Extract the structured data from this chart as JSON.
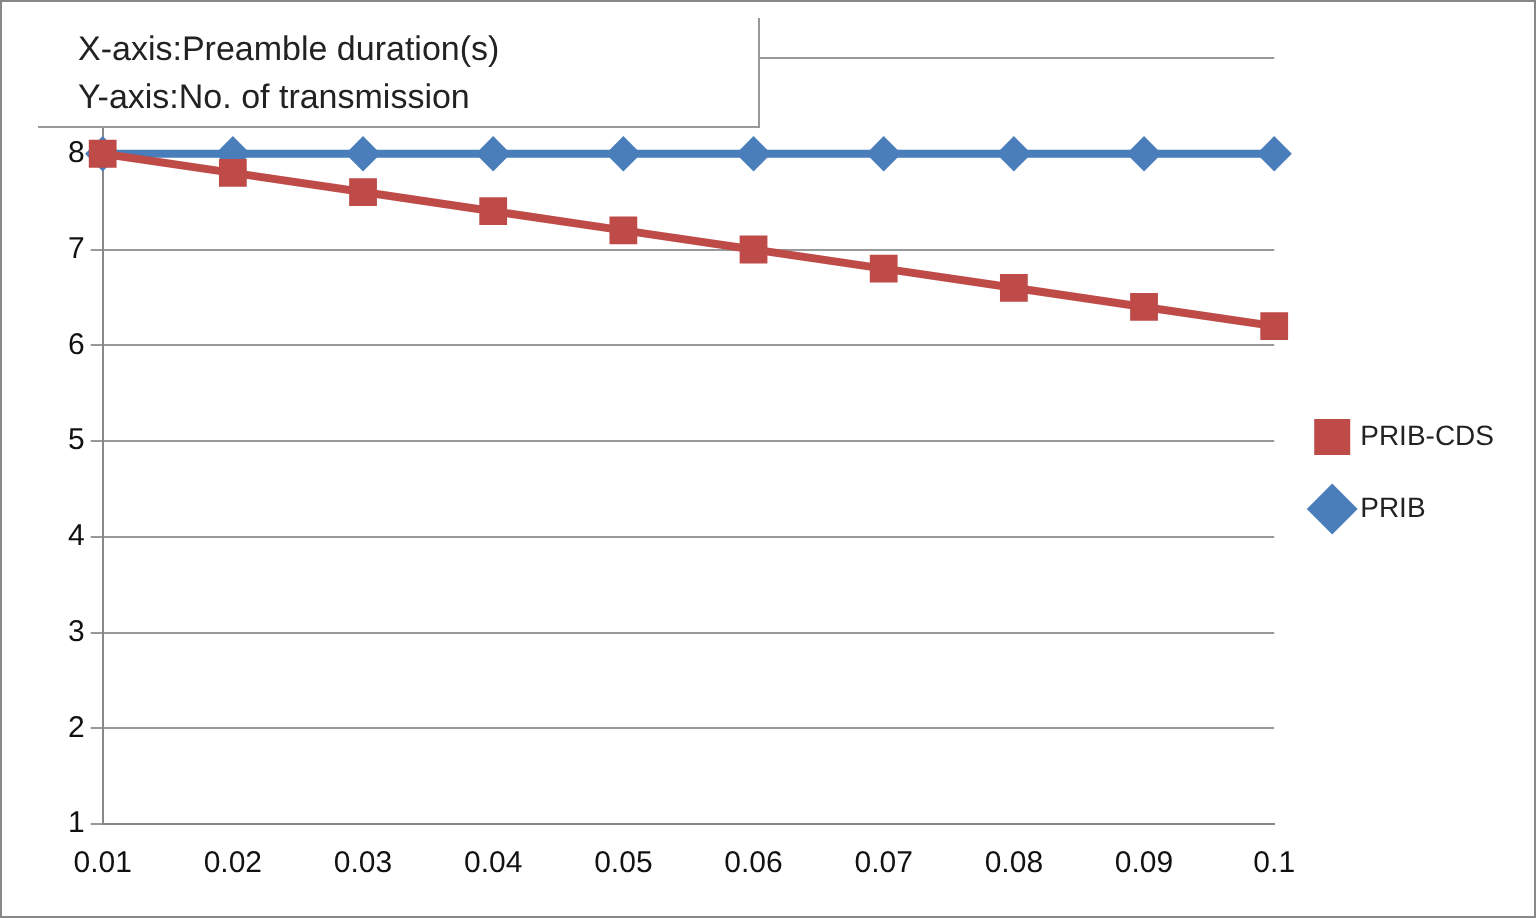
{
  "chart_data": {
    "type": "line",
    "categories": [
      "0.01",
      "0.02",
      "0.03",
      "0.04",
      "0.05",
      "0.06",
      "0.07",
      "0.08",
      "0.09",
      "0.1"
    ],
    "series": [
      {
        "name": "PRIB",
        "color": "#4a7ebb",
        "marker": "diamond",
        "values": [
          8,
          8,
          8,
          8,
          8,
          8,
          8,
          8,
          8,
          8
        ]
      },
      {
        "name": "PRIB-CDS",
        "color": "#be4b48",
        "marker": "square",
        "values": [
          8,
          7.8,
          7.6,
          7.4,
          7.2,
          7.0,
          6.8,
          6.6,
          6.4,
          6.2
        ]
      }
    ],
    "ylim": [
      1,
      9
    ],
    "yticks": [
      1,
      2,
      3,
      4,
      5,
      6,
      7,
      8,
      {
        "value": 9,
        "label": null
      }
    ],
    "grid": "y",
    "legend": "right",
    "annotations": [
      "X-axis:Preamble duration(s)",
      "Y-axis:No. of transmission"
    ]
  }
}
